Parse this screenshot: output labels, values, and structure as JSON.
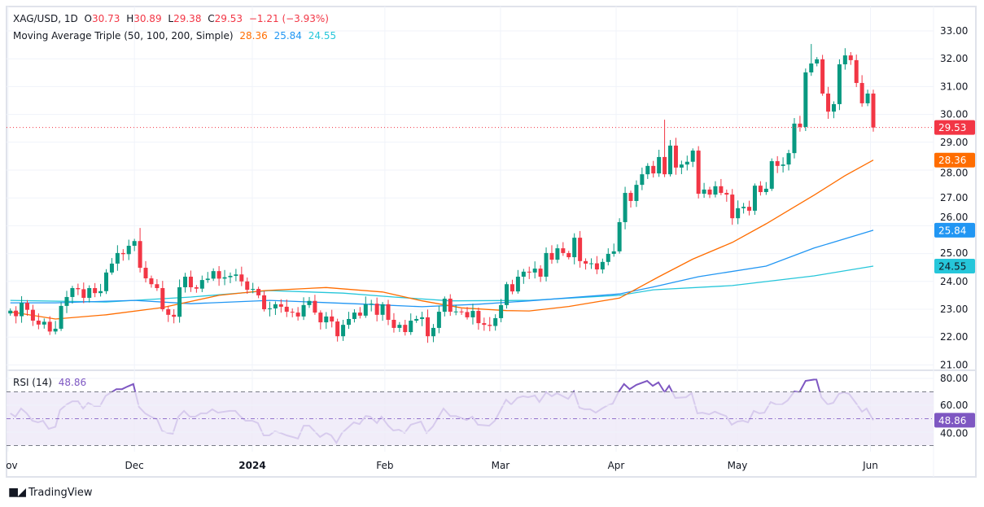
{
  "header": {
    "symbol": "XAG/USD, 1D",
    "open_label": "O",
    "open": "30.73",
    "high_label": "H",
    "high": "30.89",
    "low_label": "L",
    "low": "29.38",
    "close_label": "C",
    "close": "29.53",
    "change": "−1.21 (−3.93%)"
  },
  "ma_legend": {
    "title": "Moving Average Triple (50, 100, 200, Simple)",
    "ma50": "28.36",
    "ma100": "25.84",
    "ma200": "24.55"
  },
  "rsi_legend": {
    "title": "RSI (14)",
    "value": "48.86"
  },
  "brand": {
    "name": "TradingView"
  },
  "colors": {
    "up": "#089981",
    "down": "#f23645",
    "ma50": "#ff6d00",
    "ma100": "#2196f3",
    "ma200": "#26c6da",
    "rsi": "#7e57c2"
  },
  "chart_data": {
    "type": "candlestick",
    "first_open": 22.85,
    "closes": [
      22.95,
      22.75,
      23.23,
      22.98,
      22.59,
      22.45,
      22.55,
      22.2,
      22.3,
      23.12,
      23.44,
      23.76,
      23.72,
      23.41,
      23.76,
      23.58,
      23.65,
      24.32,
      24.64,
      25.02,
      24.98,
      25.28,
      25.45,
      24.49,
      24.11,
      23.9,
      23.76,
      23.0,
      22.8,
      22.73,
      23.79,
      24.17,
      23.79,
      23.74,
      24.05,
      24.1,
      24.37,
      24.1,
      24.15,
      24.2,
      24.25,
      24.0,
      23.7,
      23.73,
      23.5,
      23.0,
      23.03,
      23.18,
      23.09,
      22.91,
      22.88,
      22.74,
      23.15,
      23.3,
      22.88,
      22.53,
      22.74,
      22.56,
      22.03,
      22.44,
      22.65,
      22.88,
      22.77,
      23.18,
      23.2,
      22.8,
      23.18,
      22.62,
      22.33,
      22.44,
      22.18,
      22.59,
      22.65,
      22.71,
      22.03,
      22.33,
      22.91,
      23.38,
      22.91,
      22.92,
      22.9,
      22.71,
      22.94,
      22.5,
      22.44,
      22.4,
      22.68,
      23.15,
      23.9,
      23.64,
      24.17,
      24.35,
      24.32,
      24.46,
      24.17,
      25.02,
      24.78,
      25.19,
      25.02,
      24.87,
      25.57,
      24.73,
      24.64,
      24.65,
      24.43,
      24.7,
      24.99,
      25.08,
      26.13,
      27.18,
      26.89,
      27.47,
      27.85,
      28.15,
      27.88,
      28.47,
      27.85,
      28.88,
      28.09,
      28.2,
      28.3,
      28.7,
      27.15,
      27.3,
      27.12,
      27.42,
      27.18,
      27.12,
      26.27,
      26.63,
      26.68,
      26.54,
      27.44,
      27.21,
      27.33,
      28.32,
      28.15,
      28.2,
      28.61,
      29.67,
      29.55,
      31.51,
      31.83,
      31.98,
      30.75,
      30.1,
      30.37,
      31.8,
      32.12,
      31.95,
      31.13,
      30.4,
      30.75,
      29.53
    ],
    "notable_highs": [
      [
        23,
        25.92
      ],
      [
        116,
        29.81
      ],
      [
        142,
        32.53
      ],
      [
        153,
        30.89
      ]
    ],
    "last_low": 29.38,
    "last_price": 29.53,
    "ma50": [
      [
        0,
        22.91
      ],
      [
        8,
        22.65
      ],
      [
        17,
        22.8
      ],
      [
        27,
        23.06
      ],
      [
        37,
        23.5
      ],
      [
        45,
        23.67
      ],
      [
        56,
        23.78
      ],
      [
        66,
        23.62
      ],
      [
        73,
        23.3
      ],
      [
        80,
        23.05
      ],
      [
        88,
        22.95
      ],
      [
        92,
        22.94
      ],
      [
        99,
        23.1
      ],
      [
        108,
        23.4
      ],
      [
        115,
        24.17
      ],
      [
        121,
        24.8
      ],
      [
        128,
        25.4
      ],
      [
        134,
        26.07
      ],
      [
        142.5,
        27.1
      ],
      [
        148,
        27.8
      ],
      [
        153,
        28.36
      ]
    ],
    "ma100": [
      [
        0,
        23.23
      ],
      [
        8,
        23.23
      ],
      [
        22,
        23.32
      ],
      [
        32,
        23.2
      ],
      [
        46,
        23.32
      ],
      [
        63,
        23.18
      ],
      [
        73,
        23.09
      ],
      [
        83,
        23.18
      ],
      [
        92,
        23.3
      ],
      [
        108,
        23.55
      ],
      [
        114,
        23.8
      ],
      [
        122,
        24.17
      ],
      [
        134,
        24.55
      ],
      [
        142.5,
        25.2
      ],
      [
        153,
        25.84
      ]
    ],
    "ma200": [
      [
        0,
        23.32
      ],
      [
        17,
        23.26
      ],
      [
        32,
        23.44
      ],
      [
        46,
        23.67
      ],
      [
        59,
        23.58
      ],
      [
        68,
        23.44
      ],
      [
        78,
        23.3
      ],
      [
        92,
        23.32
      ],
      [
        108,
        23.5
      ],
      [
        114,
        23.7
      ],
      [
        128,
        23.85
      ],
      [
        142.5,
        24.2
      ],
      [
        153,
        24.55
      ]
    ],
    "badges": [
      {
        "label": "29.53",
        "value": 29.53,
        "color": "#f23645"
      },
      {
        "label": "28.36",
        "value": 28.36,
        "color": "#ff6d00"
      },
      {
        "label": "25.84",
        "value": 25.84,
        "color": "#2196f3"
      },
      {
        "label": "24.55",
        "value": 24.55,
        "color": "#26c6da"
      }
    ],
    "price_ticks": [
      "21.00",
      "22.00",
      "23.00",
      "24.00",
      "25.00",
      "26.00",
      "27.00",
      "28.00",
      "29.00",
      "30.00",
      "31.00",
      "32.00",
      "33.00"
    ],
    "ylim": [
      21,
      33
    ],
    "time_ticks": [
      {
        "label": "Nov",
        "idx": -0.4,
        "bold": false
      },
      {
        "label": "Dec",
        "idx": 22,
        "bold": false
      },
      {
        "label": "2024",
        "idx": 42.9,
        "bold": true
      },
      {
        "label": "Feb",
        "idx": 66.4,
        "bold": false
      },
      {
        "label": "Mar",
        "idx": 86.9,
        "bold": false
      },
      {
        "label": "Apr",
        "idx": 107.4,
        "bold": false
      },
      {
        "label": "May",
        "idx": 128.9,
        "bold": false
      },
      {
        "label": "Jun",
        "idx": 152.5,
        "bold": false
      }
    ],
    "rsi": {
      "ticks": [
        "80.00",
        "60.00",
        "40.00"
      ],
      "band": [
        30,
        70
      ],
      "mid": 50,
      "last": "48.86",
      "points": [
        [
          0,
          54
        ],
        [
          0.9,
          51.5
        ],
        [
          1.9,
          57.6
        ],
        [
          2.9,
          54
        ],
        [
          3.9,
          48.5
        ],
        [
          4.9,
          47.3
        ],
        [
          5.8,
          48.5
        ],
        [
          6.8,
          42.4
        ],
        [
          8,
          44
        ],
        [
          8.8,
          56.4
        ],
        [
          10,
          60.6
        ],
        [
          11,
          63
        ],
        [
          12,
          63
        ],
        [
          12.9,
          57.6
        ],
        [
          13.8,
          61.8
        ],
        [
          14.9,
          59.4
        ],
        [
          15.9,
          59.4
        ],
        [
          16.9,
          67
        ],
        [
          18.8,
          72
        ],
        [
          19.8,
          72
        ],
        [
          20.8,
          74
        ],
        [
          21.8,
          75.8
        ],
        [
          22.8,
          58.8
        ],
        [
          23.9,
          54
        ],
        [
          24.9,
          51.5
        ],
        [
          26,
          49.7
        ],
        [
          26.9,
          41
        ],
        [
          27.9,
          39.4
        ],
        [
          28.8,
          38.8
        ],
        [
          29.8,
          51.5
        ],
        [
          30.8,
          55.8
        ],
        [
          31.8,
          51.5
        ],
        [
          32.8,
          51.5
        ],
        [
          33.8,
          54
        ],
        [
          34.8,
          54
        ],
        [
          35.8,
          57
        ],
        [
          36.8,
          54.5
        ],
        [
          38.9,
          55.8
        ],
        [
          39.9,
          55.8
        ],
        [
          40.7,
          52
        ],
        [
          41.7,
          48.5
        ],
        [
          42.9,
          48.5
        ],
        [
          43.9,
          46.7
        ],
        [
          44.9,
          37.6
        ],
        [
          45.9,
          37.6
        ],
        [
          46.9,
          40.6
        ],
        [
          47.9,
          39.4
        ],
        [
          49,
          37.6
        ],
        [
          50,
          36.4
        ],
        [
          51,
          35.2
        ],
        [
          52,
          44.8
        ],
        [
          53,
          44.8
        ],
        [
          54.9,
          36.4
        ],
        [
          56,
          39.4
        ],
        [
          56.9,
          37.6
        ],
        [
          57.8,
          32
        ],
        [
          58.8,
          39.4
        ],
        [
          60.9,
          47.3
        ],
        [
          61.9,
          46
        ],
        [
          63,
          52
        ],
        [
          63.8,
          51.5
        ],
        [
          65,
          46.7
        ],
        [
          65.8,
          51.5
        ],
        [
          67,
          44.8
        ],
        [
          67.9,
          41.2
        ],
        [
          68.9,
          41.8
        ],
        [
          69.9,
          39.4
        ],
        [
          71,
          45.5
        ],
        [
          72.8,
          47.9
        ],
        [
          73.8,
          39.4
        ],
        [
          74.9,
          44.2
        ],
        [
          76.8,
          57.6
        ],
        [
          78,
          52
        ],
        [
          79,
          52
        ],
        [
          80.9,
          49
        ],
        [
          81.9,
          51.5
        ],
        [
          82.9,
          45.5
        ],
        [
          84.9,
          44.8
        ],
        [
          85.9,
          48.5
        ],
        [
          87.9,
          64.2
        ],
        [
          88.8,
          60.6
        ],
        [
          89.9,
          65.5
        ],
        [
          90.9,
          66.7
        ],
        [
          91.8,
          66
        ],
        [
          93,
          67.3
        ],
        [
          93.8,
          62.4
        ],
        [
          95,
          69.7
        ],
        [
          96,
          66.7
        ],
        [
          96.9,
          69
        ],
        [
          98.9,
          64.8
        ],
        [
          99.9,
          70.3
        ],
        [
          100.9,
          58.2
        ],
        [
          101.8,
          57
        ],
        [
          102.8,
          57
        ],
        [
          103.8,
          54.5
        ],
        [
          104.9,
          57.6
        ],
        [
          105.9,
          60
        ],
        [
          106.8,
          61.2
        ],
        [
          107.8,
          69.7
        ],
        [
          108.8,
          75.8
        ],
        [
          109.8,
          72
        ],
        [
          111,
          75.2
        ],
        [
          112.9,
          78.2
        ],
        [
          113.9,
          74.5
        ],
        [
          114.9,
          77
        ],
        [
          116,
          69.7
        ],
        [
          116.8,
          74.5
        ],
        [
          117.9,
          65.5
        ],
        [
          119.8,
          66
        ],
        [
          120.8,
          69
        ],
        [
          121.8,
          54
        ],
        [
          122.7,
          54.5
        ],
        [
          123.9,
          53.3
        ],
        [
          124.9,
          55.2
        ],
        [
          126,
          53.3
        ],
        [
          126.9,
          52
        ],
        [
          127.9,
          45.5
        ],
        [
          128.9,
          47.9
        ],
        [
          129.9,
          48.5
        ],
        [
          130.8,
          47.3
        ],
        [
          131.8,
          55.8
        ],
        [
          132.8,
          54
        ],
        [
          133.7,
          54.5
        ],
        [
          134.8,
          62.4
        ],
        [
          135.8,
          60.6
        ],
        [
          136.8,
          60.6
        ],
        [
          137.8,
          63.6
        ],
        [
          139,
          70.3
        ],
        [
          139.9,
          69.7
        ],
        [
          141,
          78.2
        ],
        [
          142.9,
          79.4
        ],
        [
          143.8,
          66
        ],
        [
          144.9,
          60.6
        ],
        [
          145.9,
          61.8
        ],
        [
          146.9,
          68.5
        ],
        [
          147.8,
          69.7
        ],
        [
          148.7,
          68.5
        ],
        [
          150,
          61.2
        ],
        [
          151,
          55.2
        ],
        [
          151.8,
          57.6
        ],
        [
          153,
          48.86
        ]
      ]
    }
  }
}
